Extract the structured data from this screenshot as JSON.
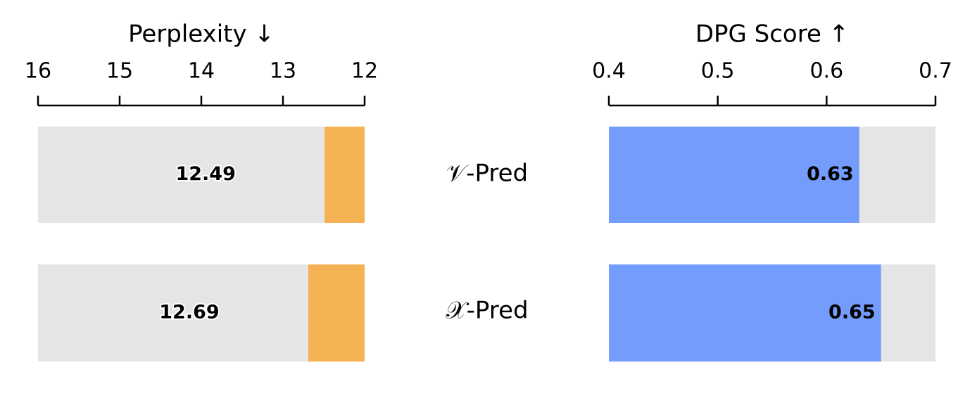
{
  "categories": [
    "𝒱-Pred",
    "𝒳-Pred"
  ],
  "chart_data": [
    {
      "type": "bar",
      "title": "Perplexity ↓",
      "values": [
        12.49,
        12.69
      ],
      "color": "#f5b253",
      "track_color": "#e5e5e5",
      "xlim": [
        16,
        12
      ],
      "xticks": [
        16,
        15,
        14,
        13,
        12
      ],
      "bar_anchor": "right",
      "value_label_color": "#f5b253"
    },
    {
      "type": "bar",
      "title": "DPG Score ↑",
      "values": [
        0.63,
        0.65
      ],
      "color": "#739cfd",
      "track_color": "#e5e5e5",
      "xlim": [
        0.4,
        0.7
      ],
      "xticks": [
        0.4,
        0.5,
        0.6,
        0.7
      ],
      "bar_anchor": "left",
      "value_label_color": "#ffffff"
    }
  ]
}
